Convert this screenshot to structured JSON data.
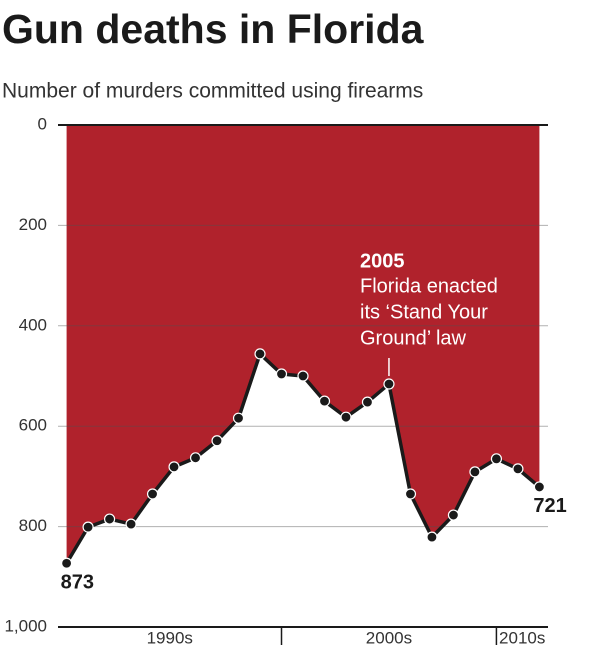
{
  "chart_data": {
    "type": "line",
    "title": "Gun deaths in Florida",
    "subtitle": "Number of murders committed using firearms",
    "x": [
      1990,
      1991,
      1992,
      1993,
      1994,
      1995,
      1996,
      1997,
      1998,
      1999,
      2000,
      2001,
      2002,
      2003,
      2004,
      2005,
      2006,
      2007,
      2008,
      2009,
      2010,
      2011,
      2012
    ],
    "values": [
      873,
      801,
      785,
      795,
      735,
      681,
      663,
      629,
      584,
      456,
      496,
      500,
      550,
      582,
      552,
      516,
      735,
      821,
      777,
      691,
      665,
      685,
      721
    ],
    "color": "#b0222c",
    "line_color": "#1a1a1a",
    "xlim": [
      1989.6,
      2012.4
    ],
    "ylim": [
      0,
      1000
    ],
    "y_inverted": true,
    "yticks": [
      0,
      200,
      400,
      600,
      800,
      {
        "value": 1000,
        "label": "1,000"
      }
    ],
    "grid": true,
    "x_bands": [
      {
        "label": "1990s",
        "start": 1990
      },
      {
        "label": "2000s",
        "start": 2000
      },
      {
        "label": "2010s",
        "start": 2010
      }
    ],
    "annotation": {
      "x": 2005,
      "title": "2005",
      "lines": [
        "Florida enacted",
        "its ‘Stand Your",
        "Ground’ law"
      ]
    }
  }
}
